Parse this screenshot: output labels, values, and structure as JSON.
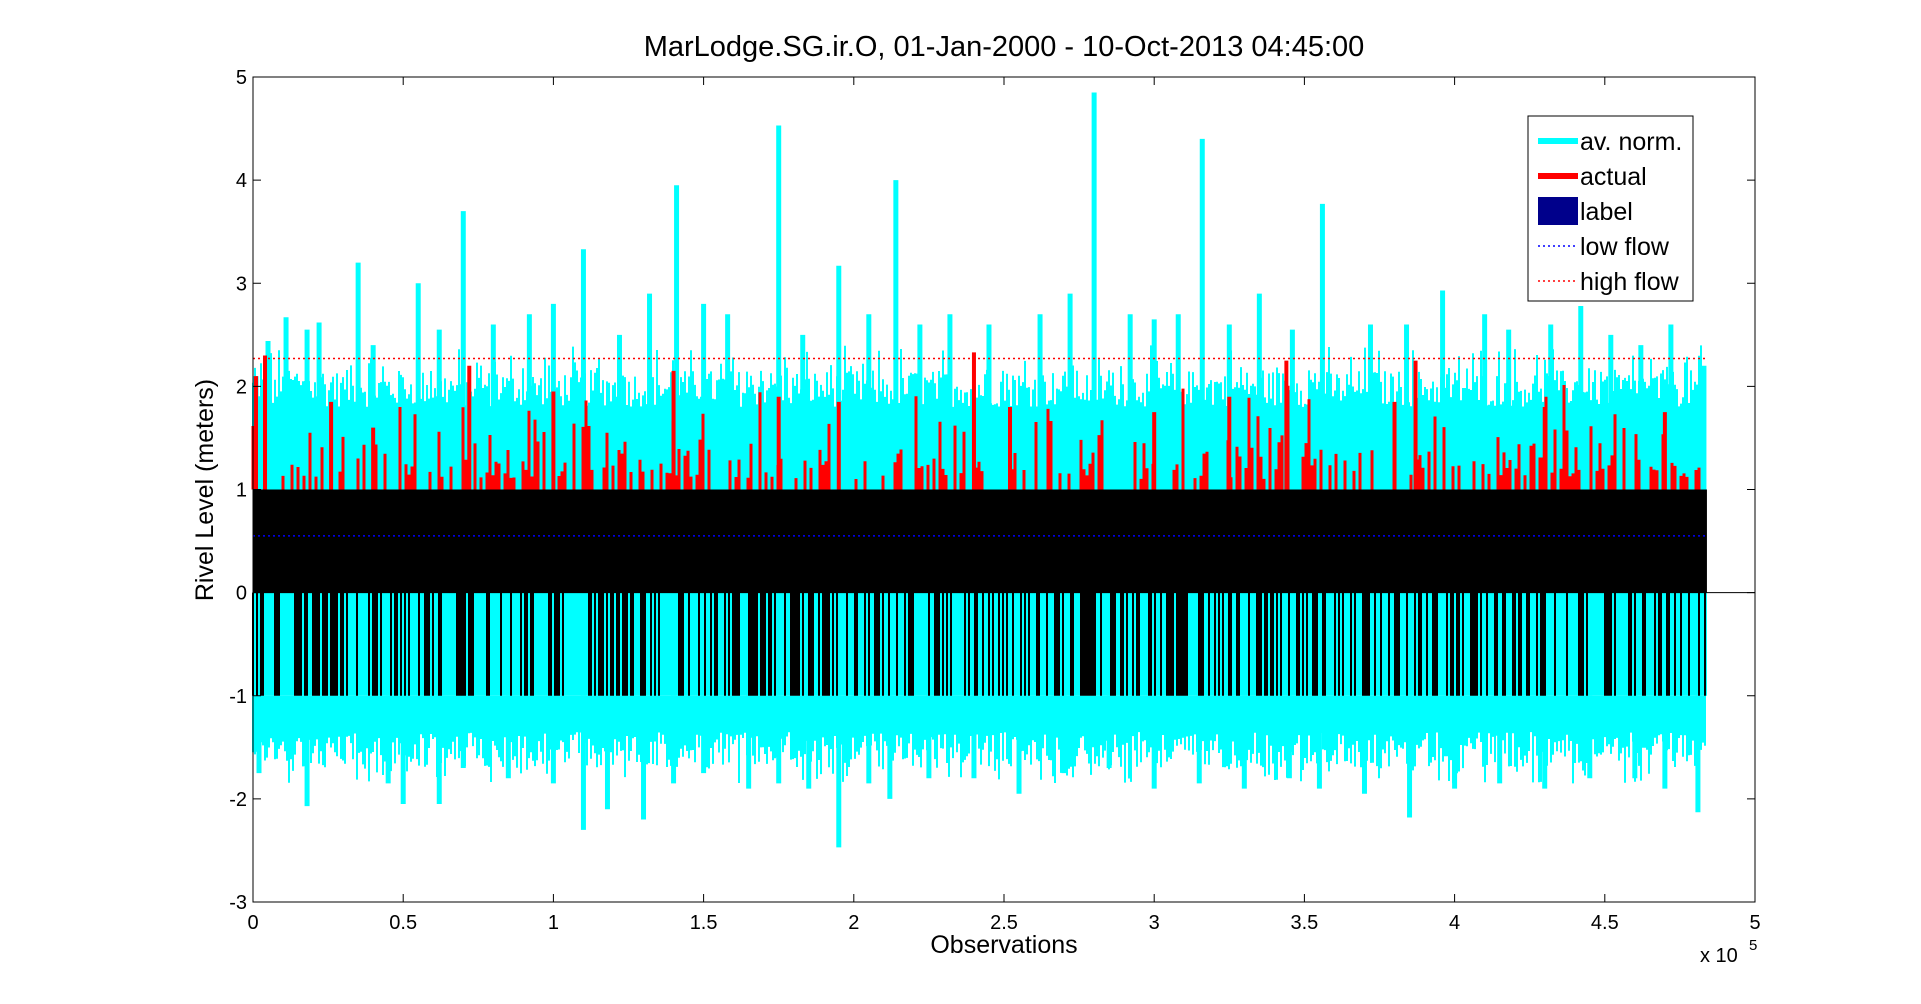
{
  "chart_data": {
    "type": "bar",
    "title": "MarLodge.SG.ir.O, 01-Jan-2000 - 10-Oct-2013 04:45:00",
    "xlabel": "Observations",
    "ylabel": "Rivel Level (meters)",
    "x_exponent_label": "x 10",
    "x_exponent_power": "5",
    "xlim": [
      0,
      500000
    ],
    "ylim": [
      -3,
      5
    ],
    "xticks": [
      0,
      50000,
      100000,
      150000,
      200000,
      250000,
      300000,
      350000,
      400000,
      450000,
      500000
    ],
    "xtick_labels": [
      "0",
      "0.5",
      "1",
      "1.5",
      "2",
      "2.5",
      "3",
      "3.5",
      "4",
      "4.5",
      "5"
    ],
    "yticks": [
      -3,
      -2,
      -1,
      0,
      1,
      2,
      3,
      4,
      5
    ],
    "ytick_labels": [
      "-3",
      "-2",
      "-1",
      "0",
      "1",
      "2",
      "3",
      "4",
      "5"
    ],
    "grid": false,
    "legend_position": "top-right",
    "data_range_x": [
      0,
      484000
    ],
    "label_band": [
      -1,
      1
    ],
    "legend": [
      {
        "name": "av. norm.",
        "kind": "line-thick",
        "color": "#00ffff"
      },
      {
        "name": "actual",
        "kind": "line-thick",
        "color": "#ff0000"
      },
      {
        "name": "label",
        "kind": "box",
        "color": "#00008b"
      },
      {
        "name": "low flow",
        "kind": "dotted",
        "color": "#0000ff"
      },
      {
        "name": "high flow",
        "kind": "dotted",
        "color": "#ff0000"
      }
    ],
    "series": [
      {
        "name": "low flow",
        "type": "hline",
        "y": 0.55,
        "x": [
          0,
          484000
        ],
        "color": "#0000ff"
      },
      {
        "name": "high flow",
        "type": "hline",
        "y": 2.27,
        "x": [
          0,
          484000
        ],
        "color": "#ff0000"
      },
      {
        "name": "av. norm.",
        "color": "#00ffff",
        "peaks": [
          {
            "x": 1000,
            "y": 2.1
          },
          {
            "x": 5000,
            "y": 2.44
          },
          {
            "x": 11000,
            "y": 2.67
          },
          {
            "x": 18000,
            "y": 2.55
          },
          {
            "x": 22000,
            "y": 2.62
          },
          {
            "x": 35000,
            "y": 3.2
          },
          {
            "x": 40000,
            "y": 2.4
          },
          {
            "x": 55000,
            "y": 3.0
          },
          {
            "x": 62000,
            "y": 2.55
          },
          {
            "x": 70000,
            "y": 3.7
          },
          {
            "x": 80000,
            "y": 2.6
          },
          {
            "x": 92000,
            "y": 2.7
          },
          {
            "x": 100000,
            "y": 2.8
          },
          {
            "x": 110000,
            "y": 3.33
          },
          {
            "x": 122000,
            "y": 2.5
          },
          {
            "x": 132000,
            "y": 2.9
          },
          {
            "x": 141000,
            "y": 3.95
          },
          {
            "x": 150000,
            "y": 2.8
          },
          {
            "x": 158000,
            "y": 2.7
          },
          {
            "x": 175000,
            "y": 4.53
          },
          {
            "x": 183000,
            "y": 2.5
          },
          {
            "x": 195000,
            "y": 3.17
          },
          {
            "x": 205000,
            "y": 2.7
          },
          {
            "x": 214000,
            "y": 4.0
          },
          {
            "x": 222000,
            "y": 2.6
          },
          {
            "x": 232000,
            "y": 2.7
          },
          {
            "x": 245000,
            "y": 2.6
          },
          {
            "x": 262000,
            "y": 2.7
          },
          {
            "x": 272000,
            "y": 2.9
          },
          {
            "x": 280000,
            "y": 4.85
          },
          {
            "x": 292000,
            "y": 2.7
          },
          {
            "x": 300000,
            "y": 2.65
          },
          {
            "x": 308000,
            "y": 2.7
          },
          {
            "x": 316000,
            "y": 4.4
          },
          {
            "x": 325000,
            "y": 2.6
          },
          {
            "x": 335000,
            "y": 2.9
          },
          {
            "x": 346000,
            "y": 2.55
          },
          {
            "x": 356000,
            "y": 3.77
          },
          {
            "x": 372000,
            "y": 2.6
          },
          {
            "x": 384000,
            "y": 2.6
          },
          {
            "x": 396000,
            "y": 2.93
          },
          {
            "x": 410000,
            "y": 2.7
          },
          {
            "x": 418000,
            "y": 2.55
          },
          {
            "x": 432000,
            "y": 2.6
          },
          {
            "x": 442000,
            "y": 2.78
          },
          {
            "x": 452000,
            "y": 2.5
          },
          {
            "x": 462000,
            "y": 2.4
          },
          {
            "x": 472000,
            "y": 2.6
          },
          {
            "x": 483000,
            "y": 2.2
          }
        ],
        "troughs": [
          {
            "x": 2000,
            "y": -1.75
          },
          {
            "x": 18000,
            "y": -2.07
          },
          {
            "x": 30000,
            "y": -1.6
          },
          {
            "x": 45000,
            "y": -1.85
          },
          {
            "x": 50000,
            "y": -2.05
          },
          {
            "x": 62000,
            "y": -2.05
          },
          {
            "x": 70000,
            "y": -1.7
          },
          {
            "x": 85000,
            "y": -1.8
          },
          {
            "x": 100000,
            "y": -1.85
          },
          {
            "x": 110000,
            "y": -2.3
          },
          {
            "x": 118000,
            "y": -2.1
          },
          {
            "x": 130000,
            "y": -2.2
          },
          {
            "x": 140000,
            "y": -1.85
          },
          {
            "x": 150000,
            "y": -1.75
          },
          {
            "x": 165000,
            "y": -1.9
          },
          {
            "x": 175000,
            "y": -1.85
          },
          {
            "x": 185000,
            "y": -1.9
          },
          {
            "x": 195000,
            "y": -2.47
          },
          {
            "x": 205000,
            "y": -1.85
          },
          {
            "x": 212000,
            "y": -2.0
          },
          {
            "x": 225000,
            "y": -1.8
          },
          {
            "x": 240000,
            "y": -1.8
          },
          {
            "x": 255000,
            "y": -1.95
          },
          {
            "x": 270000,
            "y": -1.75
          },
          {
            "x": 285000,
            "y": -1.7
          },
          {
            "x": 300000,
            "y": -1.9
          },
          {
            "x": 315000,
            "y": -1.85
          },
          {
            "x": 330000,
            "y": -1.9
          },
          {
            "x": 345000,
            "y": -1.8
          },
          {
            "x": 355000,
            "y": -1.9
          },
          {
            "x": 370000,
            "y": -1.95
          },
          {
            "x": 385000,
            "y": -2.18
          },
          {
            "x": 400000,
            "y": -1.9
          },
          {
            "x": 415000,
            "y": -1.85
          },
          {
            "x": 430000,
            "y": -1.9
          },
          {
            "x": 445000,
            "y": -1.8
          },
          {
            "x": 460000,
            "y": -1.8
          },
          {
            "x": 470000,
            "y": -1.9
          },
          {
            "x": 481000,
            "y": -2.13
          }
        ]
      },
      {
        "name": "actual",
        "color": "#ff0000",
        "peaks": [
          {
            "x": 1000,
            "y": 2.1
          },
          {
            "x": 4000,
            "y": 2.3
          },
          {
            "x": 26000,
            "y": 1.85
          },
          {
            "x": 40000,
            "y": 1.6
          },
          {
            "x": 72000,
            "y": 2.2
          },
          {
            "x": 100000,
            "y": 1.95
          },
          {
            "x": 140000,
            "y": 2.15
          },
          {
            "x": 175000,
            "y": 1.9
          },
          {
            "x": 195000,
            "y": 1.85
          },
          {
            "x": 240000,
            "y": 2.33
          },
          {
            "x": 252000,
            "y": 1.8
          },
          {
            "x": 300000,
            "y": 1.75
          },
          {
            "x": 325000,
            "y": 1.9
          },
          {
            "x": 344000,
            "y": 2.25
          },
          {
            "x": 380000,
            "y": 1.85
          },
          {
            "x": 387000,
            "y": 2.25
          },
          {
            "x": 430000,
            "y": 1.8
          },
          {
            "x": 470000,
            "y": 1.75
          }
        ]
      }
    ]
  }
}
